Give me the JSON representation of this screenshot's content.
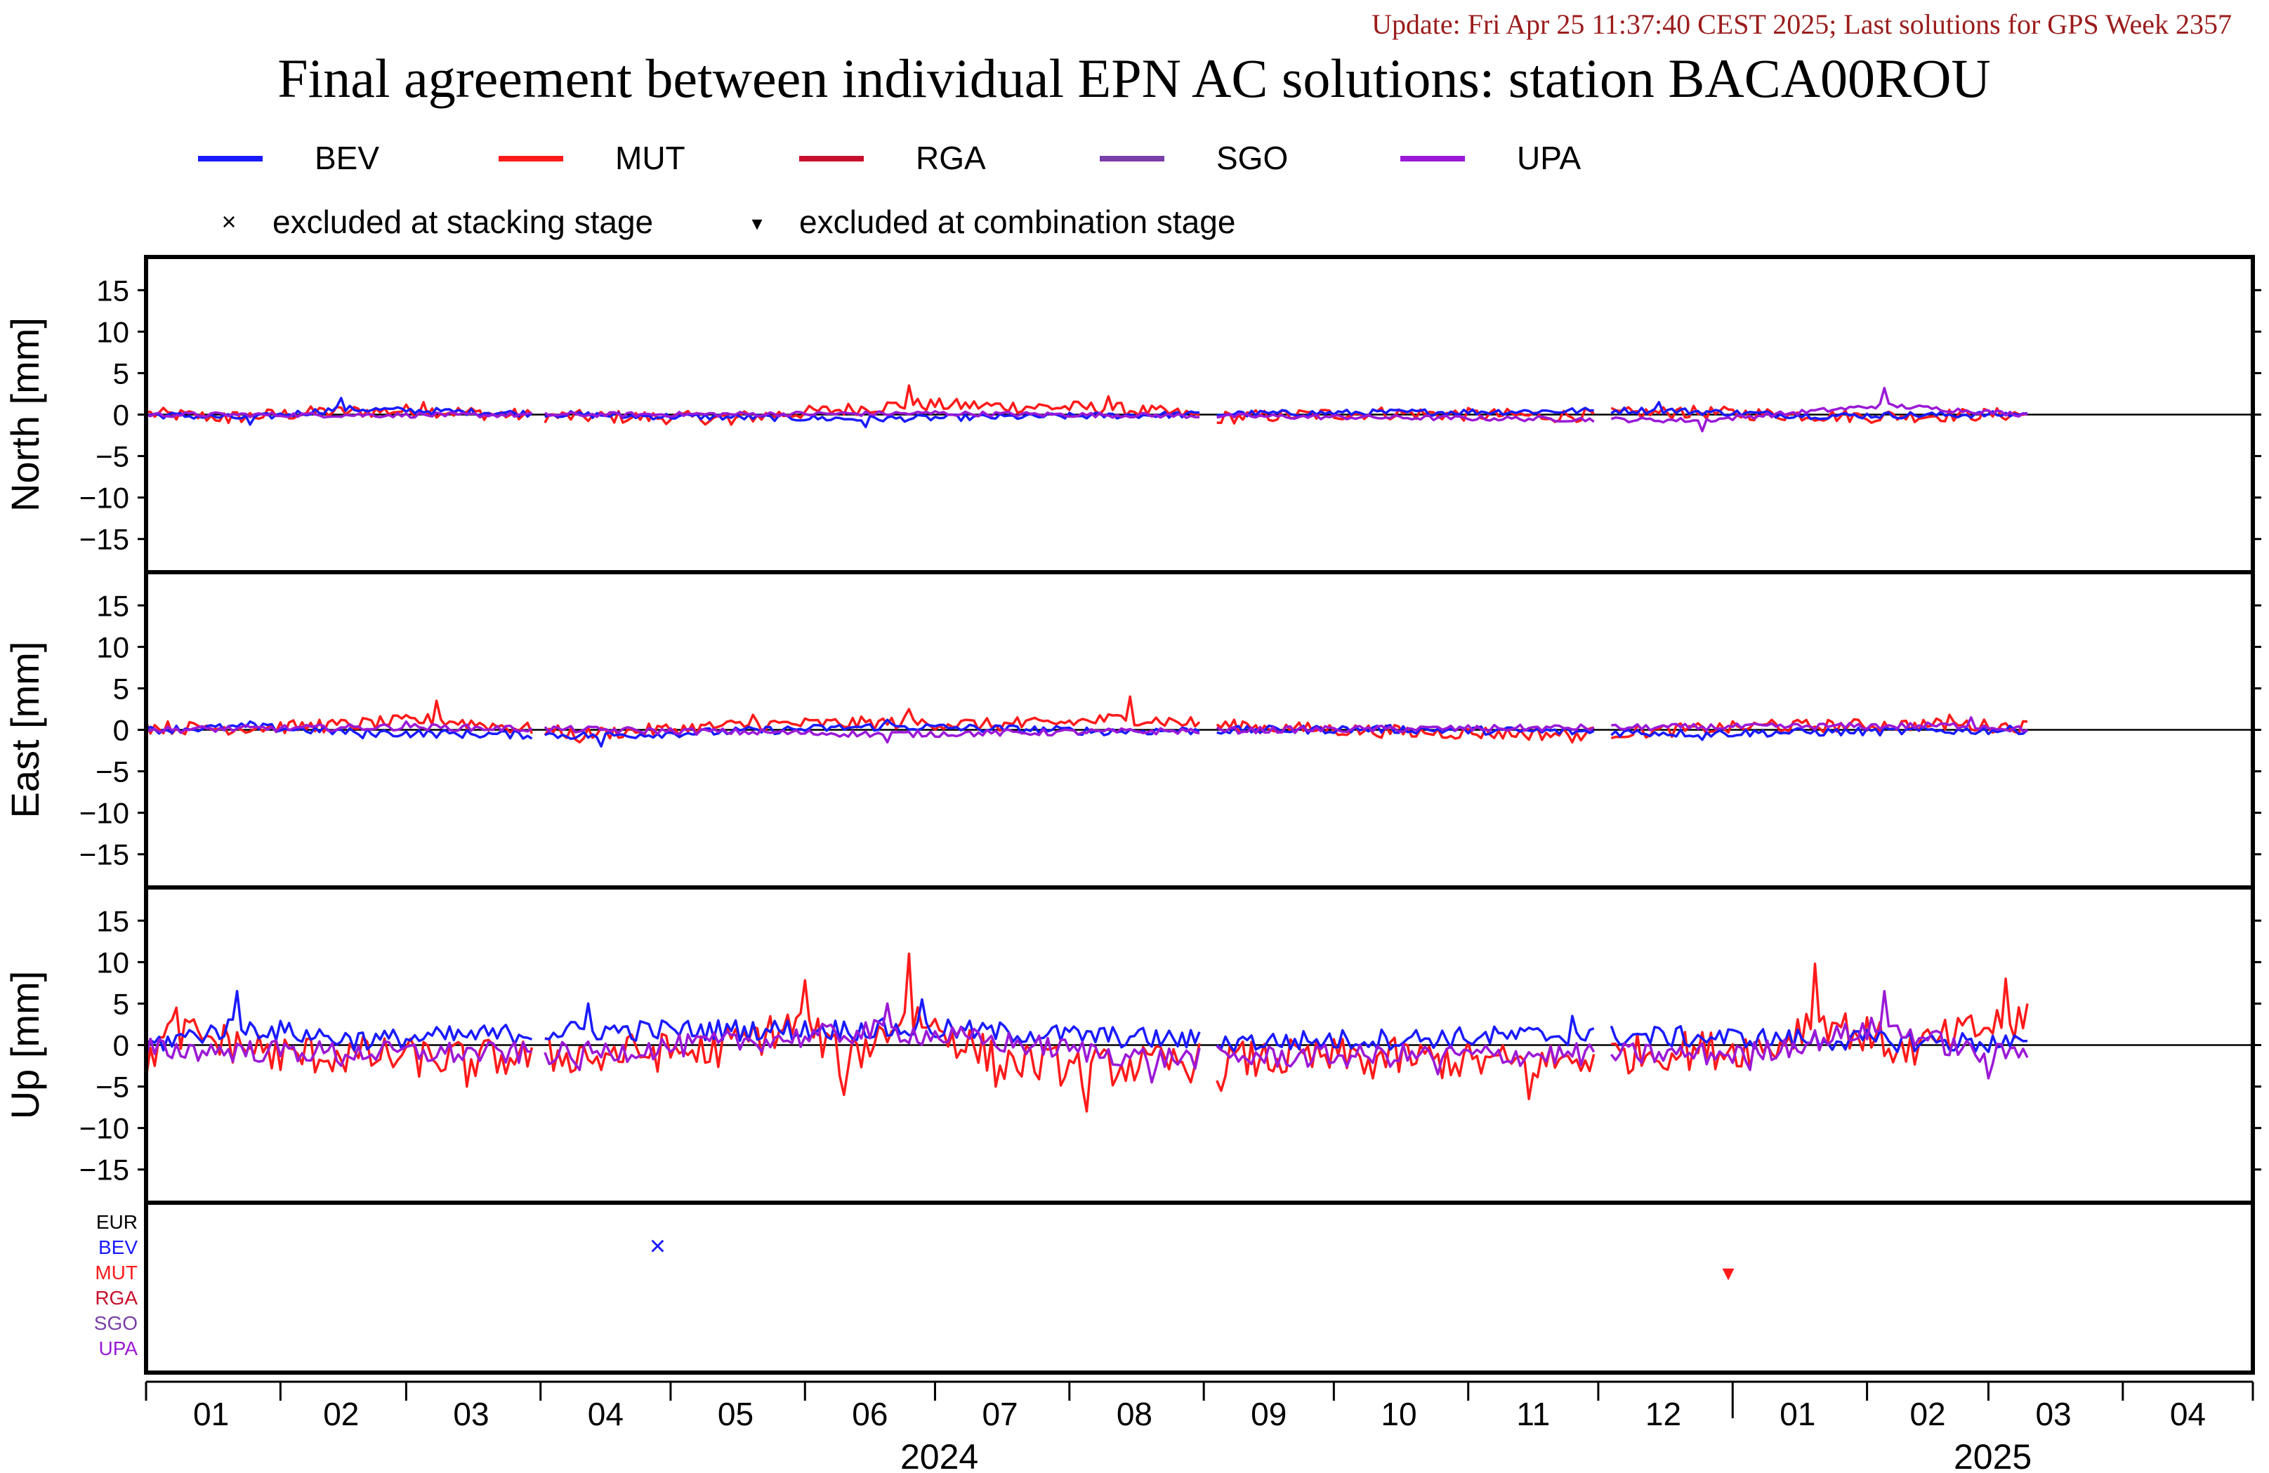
{
  "header": {
    "update": "Update: Fri Apr 25 11:37:40 CEST 2025; Last solutions for GPS Week 2357",
    "title": "Final agreement between individual EPN AC solutions: station BACA00ROU"
  },
  "legend": {
    "series": [
      {
        "name": "BEV",
        "color": "#1a1aff"
      },
      {
        "name": "MUT",
        "color": "#ff1a1a"
      },
      {
        "name": "RGA",
        "color": "#c8102e"
      },
      {
        "name": "SGO",
        "color": "#7a3fa8"
      },
      {
        "name": "UPA",
        "color": "#9b19d6"
      }
    ],
    "markers": [
      {
        "symbol": "×",
        "label": "excluded at stacking stage"
      },
      {
        "symbol": "▾",
        "label": "excluded at combination stage"
      }
    ]
  },
  "chart_data": {
    "type": "line",
    "x_range": [
      "2024-01-01",
      "2025-04-30"
    ],
    "x_ticks": {
      "months": [
        "01",
        "02",
        "03",
        "04",
        "05",
        "06",
        "07",
        "08",
        "09",
        "10",
        "11",
        "12",
        "01",
        "02",
        "03",
        "04"
      ],
      "years": [
        "2024",
        "2025"
      ]
    },
    "panels": [
      {
        "id": "north",
        "ylabel": "North [mm]",
        "ylim": [
          -19,
          19
        ],
        "yticks": [
          "15",
          "10",
          "5",
          "0",
          "−5",
          "−10",
          "−15"
        ],
        "series": [
          {
            "name": "MUT",
            "dates": [
              "2024-01-01",
              "2024-01-20",
              "2024-02-10",
              "2024-03-05",
              "2024-04-01",
              "2024-05-15",
              "2024-06-25",
              "2024-08-10",
              "2024-09-05",
              "2024-10-10",
              "2024-11-20",
              "2024-12-20",
              "2025-02-01",
              "2025-03-10"
            ],
            "values": [
              0.3,
              -1.0,
              0.8,
              1.5,
              -0.6,
              -1.2,
              3.5,
              2.2,
              -1.0,
              0.6,
              -0.5,
              0.8,
              -0.6,
              0.2
            ]
          },
          {
            "name": "BEV",
            "dates": [
              "2024-01-01",
              "2024-01-25",
              "2024-02-15",
              "2024-04-20",
              "2024-06-15",
              "2024-09-10",
              "2024-12-15",
              "2025-01-20",
              "2025-03-10"
            ],
            "values": [
              0.0,
              -1.2,
              2.0,
              -0.4,
              -1.5,
              0.3,
              1.5,
              -0.4,
              0.1
            ]
          },
          {
            "name": "UPA",
            "dates": [
              "2024-01-01",
              "2024-03-10",
              "2024-07-01",
              "2024-12-25",
              "2025-02-05",
              "2025-03-10"
            ],
            "values": [
              0.0,
              -0.2,
              0.4,
              -2.0,
              3.2,
              0.0
            ]
          }
        ]
      },
      {
        "id": "east",
        "ylabel": "East [mm]",
        "ylim": [
          -19,
          19
        ],
        "yticks": [
          "15",
          "10",
          "5",
          "0",
          "−5",
          "−10",
          "−15"
        ],
        "series": [
          {
            "name": "MUT",
            "dates": [
              "2024-01-01",
              "2024-01-15",
              "2024-02-10",
              "2024-03-08",
              "2024-04-10",
              "2024-05-20",
              "2024-06-25",
              "2024-07-20",
              "2024-08-15",
              "2024-09-10",
              "2024-10-20",
              "2024-11-25",
              "2025-01-10",
              "2025-02-20",
              "2025-03-10"
            ],
            "values": [
              1.0,
              0.5,
              1.2,
              3.5,
              -1.5,
              1.8,
              2.5,
              1.5,
              4.0,
              1.0,
              -0.8,
              -1.5,
              1.2,
              1.8,
              1.0
            ]
          },
          {
            "name": "BEV",
            "dates": [
              "2024-01-01",
              "2024-01-25",
              "2024-02-20",
              "2024-04-15",
              "2024-06-20",
              "2024-08-10",
              "2024-10-10",
              "2024-12-25",
              "2025-03-10"
            ],
            "values": [
              0.0,
              1.0,
              -1.0,
              -2.0,
              1.2,
              -0.5,
              0.3,
              -1.2,
              0.0
            ]
          },
          {
            "name": "UPA",
            "dates": [
              "2024-01-01",
              "2024-03-01",
              "2024-06-20",
              "2024-10-01",
              "2025-02-25",
              "2025-03-10"
            ],
            "values": [
              0.0,
              1.0,
              -1.5,
              0.2,
              1.5,
              0.0
            ]
          }
        ]
      },
      {
        "id": "up",
        "ylabel": "Up [mm]",
        "ylim": [
          -19,
          19
        ],
        "yticks": [
          "15",
          "10",
          "5",
          "0",
          "−5",
          "−10",
          "−15"
        ],
        "series": [
          {
            "name": "MUT",
            "dates": [
              "2024-01-01",
              "2024-01-08",
              "2024-02-01",
              "2024-03-15",
              "2024-04-15",
              "2024-05-10",
              "2024-06-01",
              "2024-06-10",
              "2024-06-25",
              "2024-07-15",
              "2024-08-05",
              "2024-09-05",
              "2024-10-10",
              "2024-11-15",
              "2024-12-15",
              "2025-01-10",
              "2025-01-20",
              "2025-02-10",
              "2025-03-05",
              "2025-03-10"
            ],
            "values": [
              -4.0,
              4.5,
              -3.0,
              -5.0,
              -3.0,
              -2.0,
              7.8,
              -6.0,
              11.0,
              -5.0,
              -8.0,
              -5.5,
              -4.0,
              -6.5,
              -2.0,
              -1.0,
              9.8,
              -2.0,
              8.0,
              5.0
            ]
          },
          {
            "name": "BEV",
            "dates": [
              "2024-01-01",
              "2024-01-22",
              "2024-02-20",
              "2024-04-12",
              "2024-06-28",
              "2024-09-10",
              "2024-11-25",
              "2025-03-10"
            ],
            "values": [
              0.0,
              6.5,
              1.5,
              5.0,
              5.5,
              1.0,
              3.5,
              0.5
            ]
          },
          {
            "name": "UPA",
            "dates": [
              "2024-01-01",
              "2024-02-15",
              "2024-04-10",
              "2024-06-20",
              "2024-08-20",
              "2024-10-25",
              "2025-01-05",
              "2025-02-05",
              "2025-03-01",
              "2025-03-10"
            ],
            "values": [
              -1.5,
              -2.5,
              -3.0,
              5.0,
              -4.5,
              -3.5,
              -3.0,
              6.5,
              -4.0,
              -1.5
            ]
          }
        ]
      }
    ],
    "exclusion_panel": {
      "rows": [
        {
          "label": "EUR",
          "color": "#000000"
        },
        {
          "label": "BEV",
          "color": "#1a1aff"
        },
        {
          "label": "MUT",
          "color": "#ff1a1a"
        },
        {
          "label": "RGA",
          "color": "#c8102e"
        },
        {
          "label": "SGO",
          "color": "#7a3fa8"
        },
        {
          "label": "UPA",
          "color": "#9b19d6"
        }
      ],
      "marks": [
        {
          "row": "BEV",
          "date": "2024-04-28",
          "symbol": "×",
          "stage": "stacking"
        },
        {
          "row": "MUT",
          "date": "2024-12-31",
          "symbol": "▾",
          "stage": "combination"
        }
      ]
    }
  }
}
